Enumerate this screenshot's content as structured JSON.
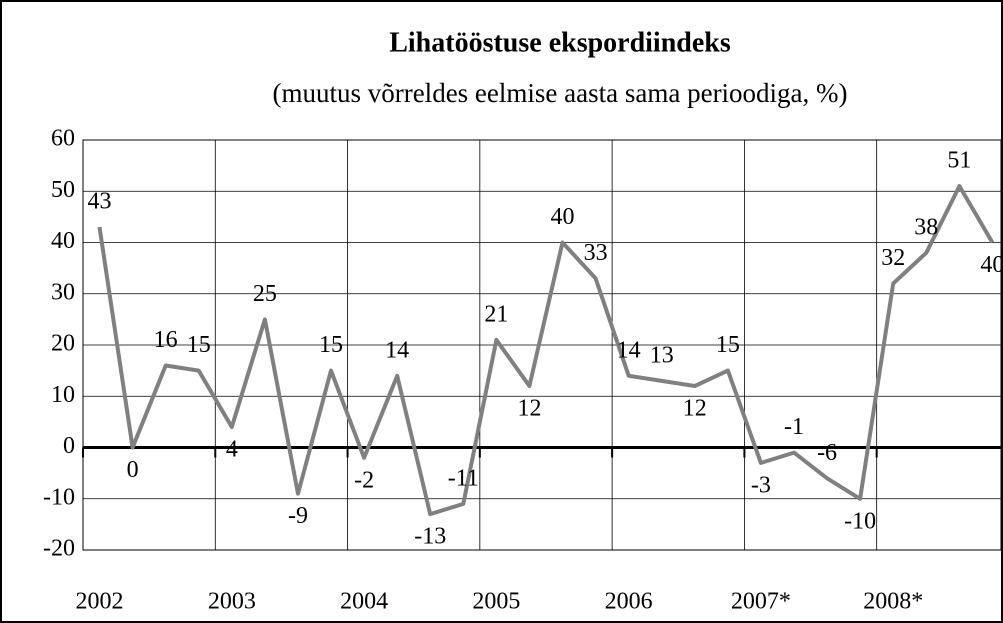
{
  "chart_data": {
    "type": "line",
    "title": "Lihatööstuse ekspordiindeks",
    "subtitle": "(muutus võrreldes eelmise aasta sama perioodiga, %)",
    "categories": [
      "2002",
      null,
      null,
      null,
      "2003",
      null,
      null,
      null,
      "2004",
      null,
      null,
      null,
      "2005",
      null,
      null,
      null,
      "2006",
      null,
      null,
      null,
      "2007*",
      null,
      null,
      null,
      "2008*",
      null,
      null,
      null
    ],
    "series": [
      {
        "name": "Lihatööstuse ekspordiindeks",
        "color": "#808080",
        "values": [
          43,
          0,
          16,
          15,
          4,
          25,
          -9,
          15,
          -2,
          14,
          -13,
          -11,
          21,
          12,
          40,
          33,
          14,
          13,
          12,
          15,
          -3,
          -1,
          -6,
          -10,
          32,
          38,
          51,
          40
        ]
      }
    ],
    "ylim": [
      -20,
      60
    ],
    "yticks": [
      -20,
      -10,
      0,
      10,
      20,
      30,
      40,
      50,
      60
    ],
    "grid": true
  }
}
